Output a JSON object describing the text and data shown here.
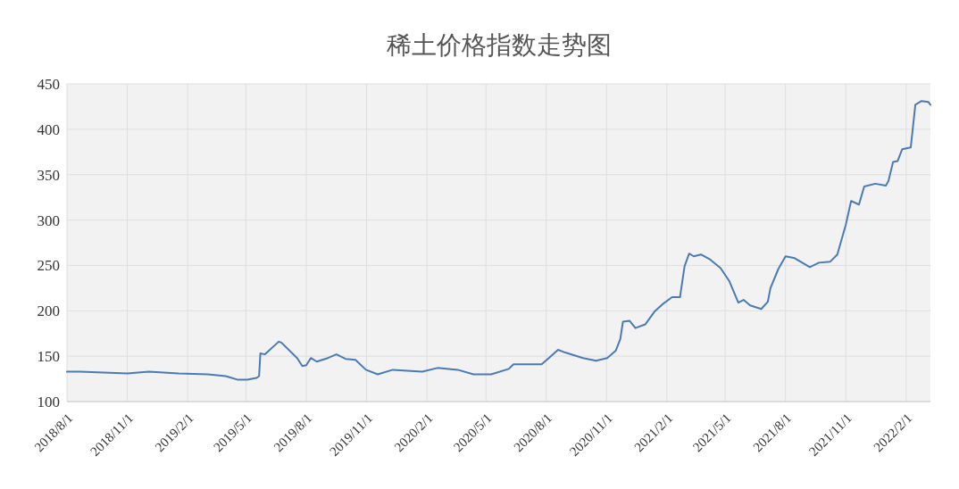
{
  "chart_data": {
    "type": "line",
    "title": "稀土价格指数走势图",
    "x": [
      "2018-08-01",
      "2018-08-21",
      "2018-11-01",
      "2018-12-04",
      "2019-01-18",
      "2019-03-04",
      "2019-03-31",
      "2019-04-19",
      "2019-05-03",
      "2019-05-17",
      "2019-05-21",
      "2019-05-23",
      "2019-05-30",
      "2019-06-20",
      "2019-06-24",
      "2019-07-18",
      "2019-07-26",
      "2019-08-01",
      "2019-08-08",
      "2019-08-17",
      "2019-09-03",
      "2019-09-16",
      "2019-09-30",
      "2019-10-15",
      "2019-10-31",
      "2019-11-18",
      "2019-12-11",
      "2020-01-25",
      "2020-02-17",
      "2020-03-19",
      "2020-04-12",
      "2020-05-09",
      "2020-06-05",
      "2020-06-12",
      "2020-07-25",
      "2020-08-05",
      "2020-08-19",
      "2020-08-30",
      "2020-09-26",
      "2020-10-16",
      "2020-11-02",
      "2020-11-15",
      "2020-11-22",
      "2020-11-26",
      "2020-12-06",
      "2020-12-15",
      "2020-12-30",
      "2021-01-13",
      "2021-01-25",
      "2021-02-09",
      "2021-02-21",
      "2021-02-28",
      "2021-03-07",
      "2021-03-14",
      "2021-03-25",
      "2021-04-07",
      "2021-04-24",
      "2021-05-07",
      "2021-05-21",
      "2021-05-29",
      "2021-06-08",
      "2021-06-25",
      "2021-07-05",
      "2021-07-09",
      "2021-07-21",
      "2021-08-01",
      "2021-08-15",
      "2021-09-07",
      "2021-09-21",
      "2021-10-08",
      "2021-10-19",
      "2021-11-01",
      "2021-11-09",
      "2021-11-21",
      "2021-11-29",
      "2021-12-16",
      "2022-01-01",
      "2022-01-05",
      "2022-01-12",
      "2022-01-19",
      "2022-01-26",
      "2022-02-08",
      "2022-02-15",
      "2022-02-24",
      "2022-03-07",
      "2022-03-10"
    ],
    "series": [
      {
        "color": "#4a7ab5",
        "values": [
          133,
          133,
          131,
          133,
          131,
          130,
          128,
          124,
          124,
          126,
          128,
          153,
          152,
          166,
          165,
          148,
          139,
          140,
          148,
          144,
          148,
          152,
          147,
          146,
          135,
          130,
          135,
          133,
          137,
          135,
          130,
          130,
          136,
          141,
          141,
          148,
          157,
          154,
          148,
          145,
          148,
          156,
          169,
          188,
          189,
          181,
          185,
          199,
          207,
          215,
          215,
          249,
          263,
          260,
          262,
          257,
          247,
          233,
          209,
          212,
          206,
          202,
          210,
          225,
          246,
          260,
          258,
          248,
          253,
          254,
          262,
          295,
          321,
          317,
          337,
          340,
          338,
          343,
          364,
          365,
          378,
          380,
          427,
          431,
          430,
          427
        ]
      }
    ],
    "xlim": [
      "2018-08-01",
      "2022-03-10"
    ],
    "xticks": [
      {
        "value": "2018-08-01",
        "label": "2018/8/1"
      },
      {
        "value": "2018-11-01",
        "label": "2018/11/1"
      },
      {
        "value": "2019-02-01",
        "label": "2019/2/1"
      },
      {
        "value": "2019-05-01",
        "label": "2019/5/1"
      },
      {
        "value": "2019-08-01",
        "label": "2019/8/1"
      },
      {
        "value": "2019-11-01",
        "label": "2019/11/1"
      },
      {
        "value": "2020-02-01",
        "label": "2020/2/1"
      },
      {
        "value": "2020-05-01",
        "label": "2020/5/1"
      },
      {
        "value": "2020-08-01",
        "label": "2020/8/1"
      },
      {
        "value": "2020-11-01",
        "label": "2020/11/1"
      },
      {
        "value": "2021-02-01",
        "label": "2021/2/1"
      },
      {
        "value": "2021-05-01",
        "label": "2021/5/1"
      },
      {
        "value": "2021-08-01",
        "label": "2021/8/1"
      },
      {
        "value": "2021-11-01",
        "label": "2021/11/1"
      },
      {
        "value": "2022-02-01",
        "label": "2022/2/1"
      }
    ],
    "ylim": [
      100,
      450
    ],
    "yticks": [
      100,
      150,
      200,
      250,
      300,
      350,
      400,
      450
    ],
    "grid": true,
    "marker": "none",
    "line_style": "solid"
  }
}
